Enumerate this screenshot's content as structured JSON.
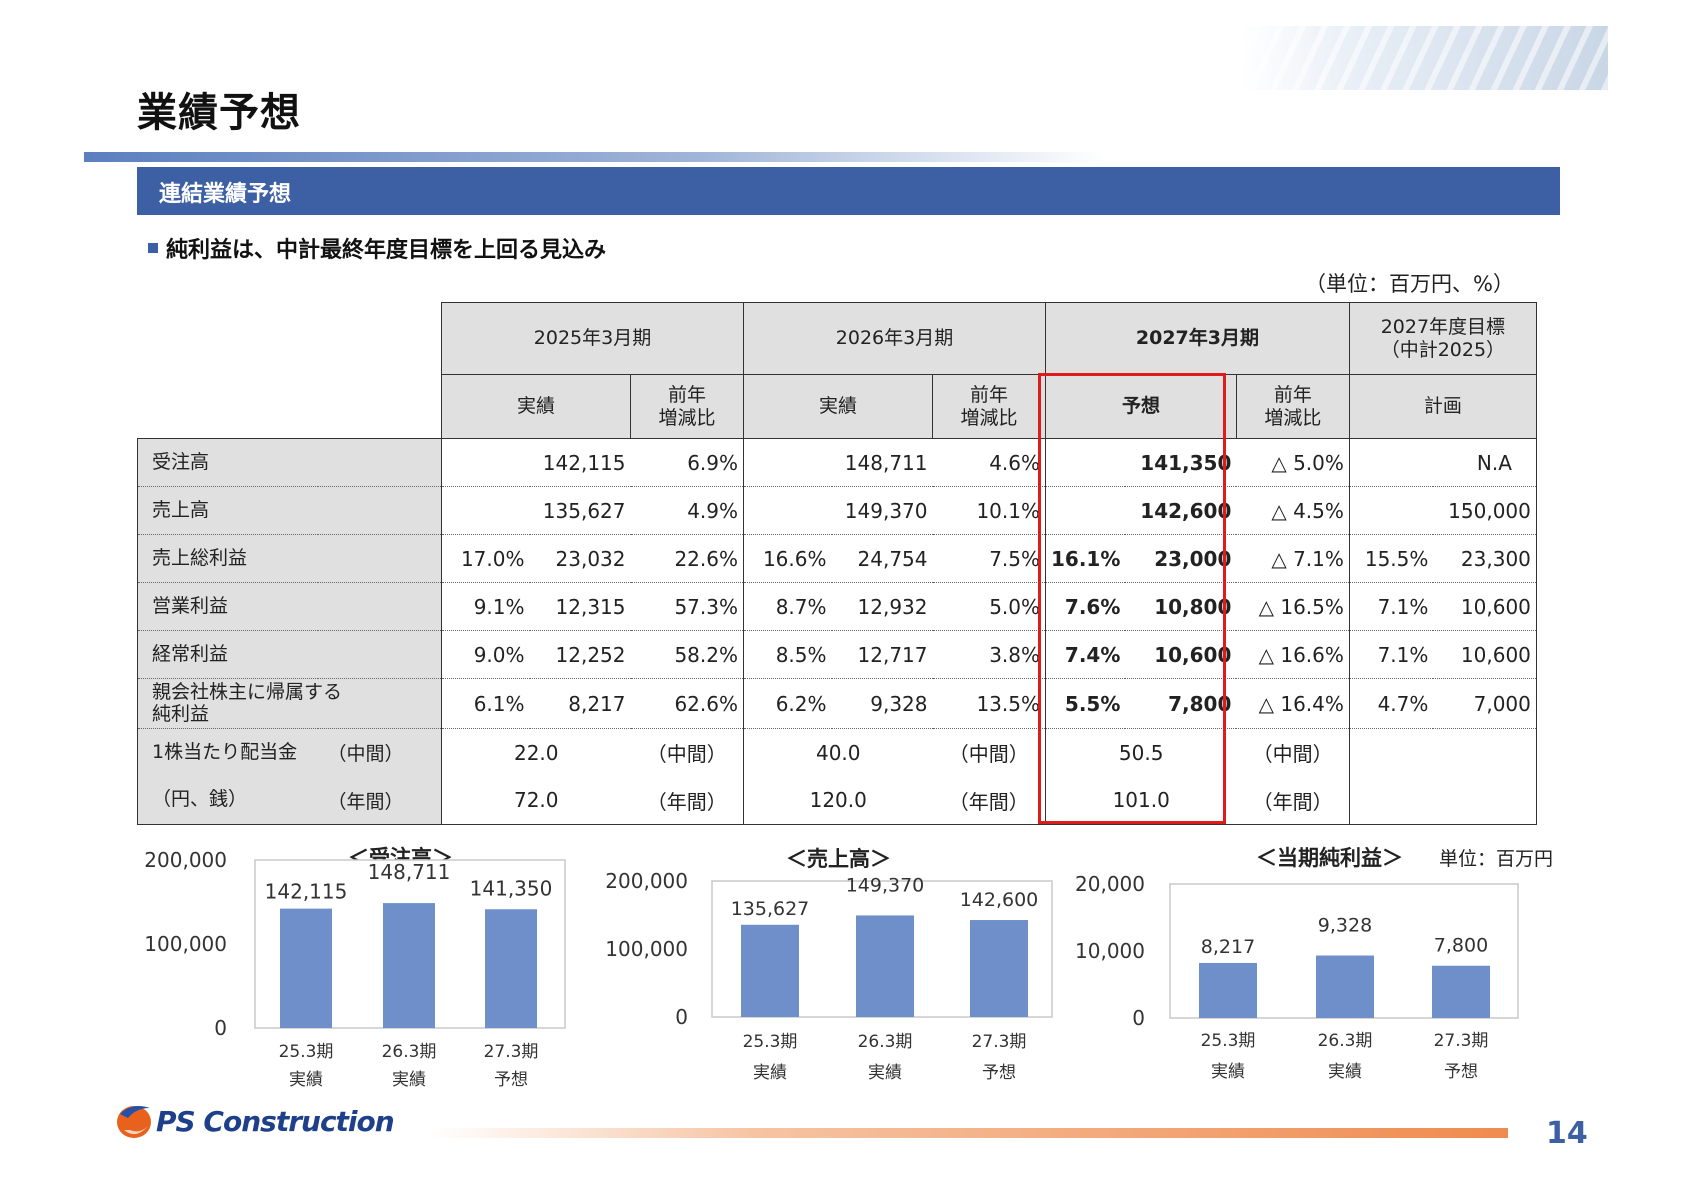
{
  "page": {
    "title": "業績予想",
    "section": "連結業績予想",
    "bullet": "純利益は、中計最終年度目標を上回る見込み",
    "unit": "（単位：百万円、%）",
    "page_number": "14"
  },
  "table": {
    "period_headers": [
      "2025年3月期",
      "2026年3月期",
      "2027年3月期",
      "2027年度目標",
      "（中計2025）"
    ],
    "sub_headers": [
      "実績",
      "前年",
      "増減比",
      "実績",
      "前年",
      "増減比",
      "予想",
      "前年",
      "増減比",
      "計画"
    ],
    "rows": {
      "orders": {
        "label": "受注高",
        "c25_val": "142,115",
        "c25_yoy": "6.9%",
        "c26_val": "148,711",
        "c26_yoy": "4.6%",
        "c27_val": "141,350",
        "c27_yoy": "△ 5.0%",
        "plan_val": "N.A"
      },
      "sales": {
        "label": "売上高",
        "c25_val": "135,627",
        "c25_yoy": "4.9%",
        "c26_val": "149,370",
        "c26_yoy": "10.1%",
        "c27_val": "142,600",
        "c27_yoy": "△ 4.5%",
        "plan_val": "150,000"
      },
      "gross": {
        "label": "売上総利益",
        "c25_pct": "17.0%",
        "c25_val": "23,032",
        "c25_yoy": "22.6%",
        "c26_pct": "16.6%",
        "c26_val": "24,754",
        "c26_yoy": "7.5%",
        "c27_pct": "16.1%",
        "c27_val": "23,000",
        "c27_yoy": "△ 7.1%",
        "plan_pct": "15.5%",
        "plan_val": "23,300"
      },
      "operating": {
        "label": "営業利益",
        "c25_pct": "9.1%",
        "c25_val": "12,315",
        "c25_yoy": "57.3%",
        "c26_pct": "8.7%",
        "c26_val": "12,932",
        "c26_yoy": "5.0%",
        "c27_pct": "7.6%",
        "c27_val": "10,800",
        "c27_yoy": "△ 16.5%",
        "plan_pct": "7.1%",
        "plan_val": "10,600"
      },
      "ordinary": {
        "label": "経常利益",
        "c25_pct": "9.0%",
        "c25_val": "12,252",
        "c25_yoy": "58.2%",
        "c26_pct": "8.5%",
        "c26_val": "12,717",
        "c26_yoy": "3.8%",
        "c27_pct": "7.4%",
        "c27_val": "10,600",
        "c27_yoy": "△ 16.6%",
        "plan_pct": "7.1%",
        "plan_val": "10,600"
      },
      "net": {
        "label1": "親会社株主に帰属する",
        "label2": "純利益",
        "c25_pct": "6.1%",
        "c25_val": "8,217",
        "c25_yoy": "62.6%",
        "c26_pct": "6.2%",
        "c26_val": "9,328",
        "c26_yoy": "13.5%",
        "c27_pct": "5.5%",
        "c27_val": "7,800",
        "c27_yoy": "△ 16.4%",
        "plan_pct": "4.7%",
        "plan_val": "7,000"
      },
      "div_interim": {
        "label": "1株当たり配当金",
        "sub": "（中間）",
        "c25": "22.0",
        "c25_tag": "（中間）",
        "c26": "40.0",
        "c26_tag": "（中間）",
        "c27": "50.5",
        "c27_tag": "（中間）"
      },
      "div_annual": {
        "label": "（円、銭）",
        "sub": "（年間）",
        "c25": "72.0",
        "c25_tag": "（年間）",
        "c26": "120.0",
        "c26_tag": "（年間）",
        "c27": "101.0",
        "c27_tag": "（年間）"
      }
    }
  },
  "charts": {
    "unit": "単位：百万円",
    "orders_title": "＜受注高＞",
    "sales_title": "＜売上高＞",
    "net_title": "＜当期純利益＞"
  },
  "chart_data": [
    {
      "type": "bar",
      "title": "＜受注高＞",
      "categories": [
        "25.3期 実績",
        "26.3期 実績",
        "27.3期 予想"
      ],
      "cat_top": [
        "25.3期",
        "26.3期",
        "27.3期"
      ],
      "cat_bottom": [
        "実績",
        "実績",
        "予想"
      ],
      "values": [
        142115,
        148711,
        141350
      ],
      "labels": [
        "142,115",
        "148,711",
        "141,350"
      ],
      "ylim": [
        0,
        200000
      ],
      "yticks": [
        "0",
        "100,000",
        "200,000"
      ],
      "color": "#6f8fca"
    },
    {
      "type": "bar",
      "title": "＜売上高＞",
      "categories": [
        "25.3期 実績",
        "26.3期 実績",
        "27.3期 予想"
      ],
      "cat_top": [
        "25.3期",
        "26.3期",
        "27.3期"
      ],
      "cat_bottom": [
        "実績",
        "実績",
        "予想"
      ],
      "values": [
        135627,
        149370,
        142600
      ],
      "labels": [
        "135,627",
        "149,370",
        "142,600"
      ],
      "ylim": [
        0,
        200000
      ],
      "yticks": [
        "0",
        "100,000",
        "200,000"
      ],
      "color": "#6f8fca"
    },
    {
      "type": "bar",
      "title": "＜当期純利益＞",
      "categories": [
        "25.3期 実績",
        "26.3期 実績",
        "27.3期 予想"
      ],
      "cat_top": [
        "25.3期",
        "26.3期",
        "27.3期"
      ],
      "cat_bottom": [
        "実績",
        "実績",
        "予想"
      ],
      "values": [
        8217,
        9328,
        7800
      ],
      "labels": [
        "8,217",
        "9,328",
        "7,800"
      ],
      "ylim": [
        0,
        20000
      ],
      "yticks": [
        "0",
        "10,000",
        "20,000"
      ],
      "color": "#6f8fca"
    }
  ],
  "logo": {
    "text": "PS Construction"
  }
}
